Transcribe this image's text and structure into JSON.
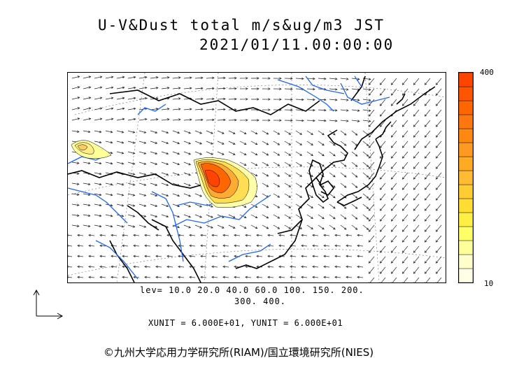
{
  "title": {
    "line1": "U-V&Dust total m/s&ug/m3 JST",
    "line2": "2021/01/11.00:00:00"
  },
  "colorbar": {
    "max_label": "400",
    "min_label": "10",
    "colors": [
      "#ffffe6",
      "#ffffcc",
      "#ffff99",
      "#ffff66",
      "#ffee44",
      "#ffdd33",
      "#ffcc33",
      "#ffbb33",
      "#ffaa22",
      "#ff9922",
      "#ff8811",
      "#ff7711",
      "#ff6600",
      "#ff5500",
      "#ff4400"
    ]
  },
  "contour_levels": {
    "line1": "lev= 10.0 20.0 40.0 60.0 100. 150. 200.",
    "line2": "300. 400."
  },
  "units_line": "XUNIT = 6.000E+01, YUNIT = 6.000E+01",
  "copyright": "©九州大学応用力学研究所(RIAM)/国立環境研究所(NIES)",
  "map": {
    "coast_color": "#000000",
    "river_color": "#1e64ff",
    "dust_colors": {
      "low": "#ffff99",
      "mid": "#ffcc33",
      "high": "#ff6600",
      "core": "#ff4400"
    }
  }
}
